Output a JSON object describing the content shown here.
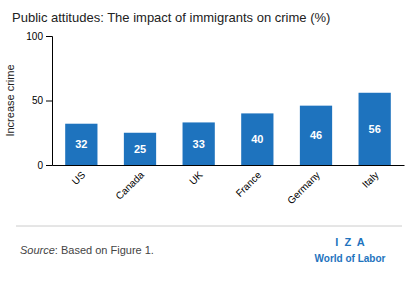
{
  "chart_data": {
    "type": "bar",
    "title": "Public attitudes: The impact of immigrants on crime (%)",
    "categories": [
      "US",
      "Canada",
      "UK",
      "France",
      "Germany",
      "Italy"
    ],
    "values": [
      32,
      25,
      33,
      40,
      46,
      56
    ],
    "color": "#1E73BE",
    "ylabel": "Increase crime",
    "ylim": [
      0,
      100
    ],
    "yticks": [
      0,
      50,
      100
    ],
    "grid": false,
    "data_labels": true,
    "annotations": [
      "Source",
      ": Based on Figure 1.",
      "I  Z  A",
      "World of Labor"
    ]
  }
}
